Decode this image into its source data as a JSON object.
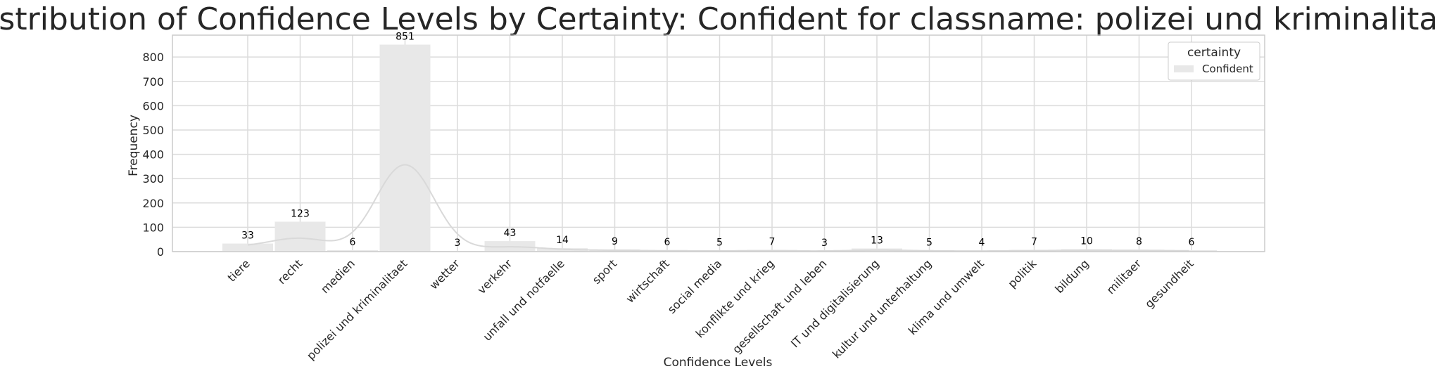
{
  "chart_data": {
    "type": "bar",
    "title": "Distribution of Confidence Levels by Certainty: Confident for classname: polizei und kriminalitaet",
    "xlabel": "Confidence Levels",
    "ylabel": "Frequency",
    "ylim": [
      0,
      890
    ],
    "yticks": [
      0,
      100,
      200,
      300,
      400,
      500,
      600,
      700,
      800
    ],
    "grid": true,
    "legend": {
      "title": "certainty",
      "placement": "top-right"
    },
    "categories": [
      "tiere",
      "recht",
      "medien",
      "polizei und kriminalitaet",
      "wetter",
      "verkehr",
      "unfall und notfaelle",
      "sport",
      "wirtschaft",
      "social media",
      "konflikte und krieg",
      "gesellschaft und leben",
      "IT und digitalisierung",
      "kultur und unterhaltung",
      "klima und umwelt",
      "politik",
      "bildung",
      "militaer",
      "gesundheit"
    ],
    "series": [
      {
        "name": "Confident",
        "color": "#e8e8e8",
        "values": [
          33,
          123,
          6,
          851,
          3,
          43,
          14,
          9,
          6,
          5,
          7,
          3,
          13,
          5,
          4,
          7,
          10,
          8,
          6
        ]
      }
    ],
    "kde_color": "#d9d9d9"
  }
}
